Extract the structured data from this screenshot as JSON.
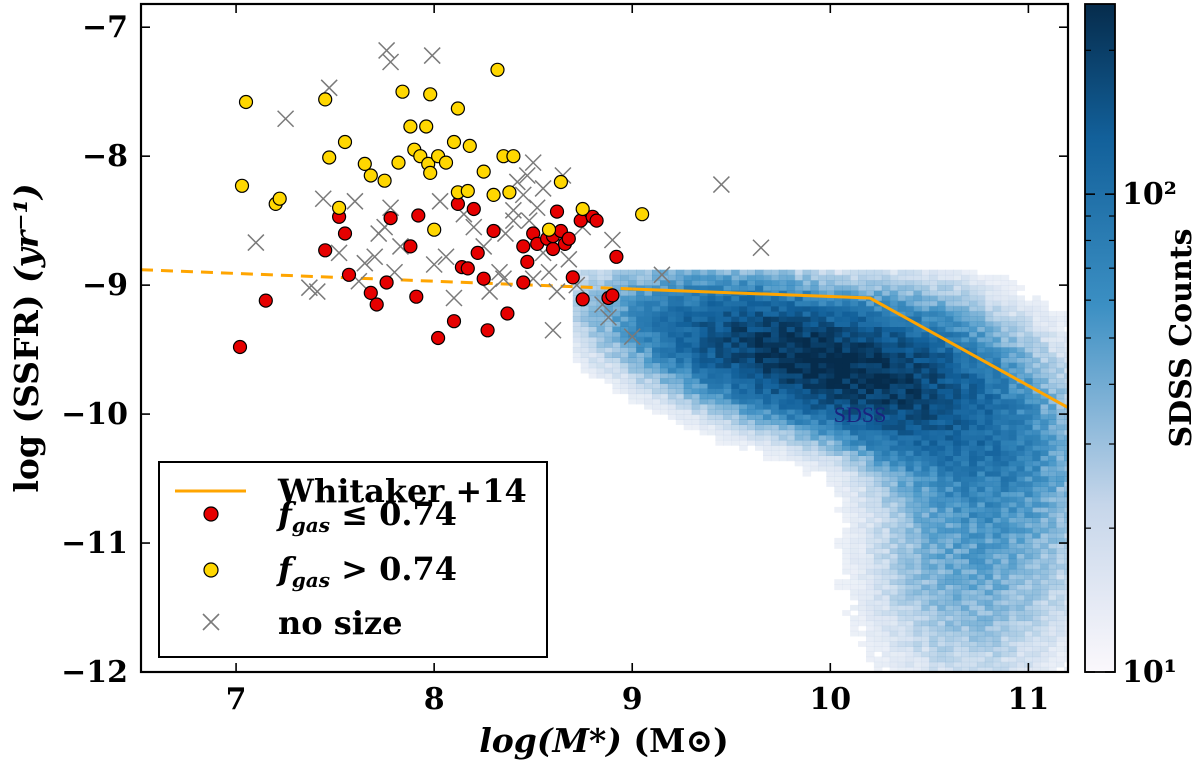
{
  "chart_data": {
    "type": "scatter",
    "xlabel": "log(M*) (M⊙)",
    "xlabel_main": "log(M*)",
    "xlabel_unit": "(M⊙)",
    "ylabel": "log (SSFR) (yr⁻¹)",
    "ylabel_main": "log (SSFR)",
    "ylabel_unit": "(yr⁻¹)",
    "xlim": [
      6.52,
      11.2
    ],
    "ylim": [
      -12,
      -6.82
    ],
    "xticks": [
      7,
      8,
      9,
      10,
      11
    ],
    "xtick_labels": [
      "7",
      "8",
      "9",
      "10",
      "11"
    ],
    "yticks": [
      -12,
      -11,
      -10,
      -9,
      -8,
      -7
    ],
    "ytick_labels": [
      "−12",
      "−11",
      "−10",
      "−9",
      "−8",
      "−7"
    ],
    "legend_position": "lower-left",
    "colorbar": {
      "label": "SDSS Counts",
      "scale": "log",
      "range": [
        10,
        250
      ],
      "tick_labels": [
        "10¹",
        "10²"
      ],
      "tick_values": [
        10,
        100
      ],
      "colors": {
        "low": "#f7f4f9",
        "mid": "#3f8fc4",
        "high": "#08304f"
      }
    },
    "annotation": {
      "text": "SDSS",
      "x": 10.15,
      "y": -10.0
    },
    "series": [
      {
        "name": "Whitaker +14",
        "label": "Whitaker +14",
        "kind": "line",
        "color": "#ffa500",
        "solid": [
          [
            9.0,
            -9.03
          ],
          [
            10.2,
            -9.1
          ],
          [
            11.2,
            -9.95
          ]
        ],
        "dashed": [
          [
            6.52,
            -8.88
          ],
          [
            9.0,
            -9.03
          ]
        ]
      },
      {
        "name": "fgas <= 0.74",
        "label_var": "f",
        "label_sub": "gas",
        "label_rest": " ≤ 0.74",
        "kind": "points",
        "color": "#e60000",
        "points": [
          [
            7.02,
            -9.48
          ],
          [
            7.15,
            -9.12
          ],
          [
            7.45,
            -8.73
          ],
          [
            7.52,
            -8.47
          ],
          [
            7.55,
            -8.6
          ],
          [
            7.57,
            -8.92
          ],
          [
            7.68,
            -9.06
          ],
          [
            7.71,
            -9.15
          ],
          [
            7.76,
            -8.98
          ],
          [
            7.78,
            -8.48
          ],
          [
            7.88,
            -8.7
          ],
          [
            7.91,
            -9.09
          ],
          [
            7.92,
            -8.46
          ],
          [
            8.02,
            -9.41
          ],
          [
            8.1,
            -9.28
          ],
          [
            8.12,
            -8.37
          ],
          [
            8.14,
            -8.86
          ],
          [
            8.17,
            -8.87
          ],
          [
            8.2,
            -8.41
          ],
          [
            8.22,
            -8.75
          ],
          [
            8.25,
            -8.95
          ],
          [
            8.27,
            -9.35
          ],
          [
            8.3,
            -8.58
          ],
          [
            8.37,
            -9.22
          ],
          [
            8.45,
            -8.7
          ],
          [
            8.45,
            -8.98
          ],
          [
            8.47,
            -8.82
          ],
          [
            8.5,
            -8.6
          ],
          [
            8.52,
            -8.68
          ],
          [
            8.57,
            -8.64
          ],
          [
            8.6,
            -8.72
          ],
          [
            8.6,
            -8.62
          ],
          [
            8.62,
            -8.43
          ],
          [
            8.64,
            -8.58
          ],
          [
            8.66,
            -8.68
          ],
          [
            8.68,
            -8.64
          ],
          [
            8.7,
            -8.94
          ],
          [
            8.74,
            -8.5
          ],
          [
            8.75,
            -9.11
          ],
          [
            8.8,
            -8.47
          ],
          [
            8.82,
            -8.5
          ],
          [
            8.88,
            -9.1
          ],
          [
            8.9,
            -9.08
          ],
          [
            8.92,
            -8.78
          ]
        ]
      },
      {
        "name": "fgas > 0.74",
        "label_var": "f",
        "label_sub": "gas",
        "label_rest": " > 0.74",
        "kind": "points",
        "color": "#ffd700",
        "points": [
          [
            7.03,
            -8.23
          ],
          [
            7.05,
            -7.58
          ],
          [
            7.2,
            -8.37
          ],
          [
            7.22,
            -8.33
          ],
          [
            7.45,
            -7.56
          ],
          [
            7.47,
            -8.01
          ],
          [
            7.52,
            -8.4
          ],
          [
            7.55,
            -7.89
          ],
          [
            7.65,
            -8.06
          ],
          [
            7.68,
            -8.15
          ],
          [
            7.75,
            -8.19
          ],
          [
            7.82,
            -8.05
          ],
          [
            7.84,
            -7.5
          ],
          [
            7.88,
            -7.77
          ],
          [
            7.9,
            -7.95
          ],
          [
            7.93,
            -8.0
          ],
          [
            7.96,
            -7.77
          ],
          [
            7.97,
            -8.06
          ],
          [
            7.98,
            -8.13
          ],
          [
            7.98,
            -7.52
          ],
          [
            8.0,
            -8.57
          ],
          [
            8.02,
            -8.0
          ],
          [
            8.06,
            -8.05
          ],
          [
            8.1,
            -7.89
          ],
          [
            8.12,
            -8.28
          ],
          [
            8.12,
            -7.63
          ],
          [
            8.17,
            -8.27
          ],
          [
            8.18,
            -7.92
          ],
          [
            8.25,
            -8.12
          ],
          [
            8.3,
            -8.3
          ],
          [
            8.32,
            -7.33
          ],
          [
            8.35,
            -8.0
          ],
          [
            8.38,
            -8.28
          ],
          [
            8.4,
            -8.0
          ],
          [
            8.58,
            -8.57
          ],
          [
            8.64,
            -8.2
          ],
          [
            8.75,
            -8.41
          ],
          [
            9.05,
            -8.45
          ]
        ]
      },
      {
        "name": "no size",
        "label": "no size",
        "kind": "crosses",
        "color": "#7a7a7a",
        "points": [
          [
            7.1,
            -8.67
          ],
          [
            7.25,
            -7.71
          ],
          [
            7.37,
            -9.02
          ],
          [
            7.41,
            -9.05
          ],
          [
            7.44,
            -8.33
          ],
          [
            7.47,
            -7.47
          ],
          [
            7.52,
            -8.75
          ],
          [
            7.6,
            -8.35
          ],
          [
            7.62,
            -8.97
          ],
          [
            7.65,
            -8.83
          ],
          [
            7.7,
            -8.78
          ],
          [
            7.72,
            -8.6
          ],
          [
            7.75,
            -8.55
          ],
          [
            7.78,
            -8.4
          ],
          [
            7.8,
            -8.9
          ],
          [
            7.83,
            -8.7
          ],
          [
            7.76,
            -7.18
          ],
          [
            7.78,
            -7.27
          ],
          [
            7.99,
            -7.22
          ],
          [
            8.0,
            -8.84
          ],
          [
            8.03,
            -8.35
          ],
          [
            8.06,
            -8.78
          ],
          [
            8.1,
            -9.1
          ],
          [
            8.15,
            -8.45
          ],
          [
            8.2,
            -8.55
          ],
          [
            8.25,
            -8.7
          ],
          [
            8.28,
            -9.05
          ],
          [
            8.33,
            -8.9
          ],
          [
            8.36,
            -8.6
          ],
          [
            8.4,
            -8.42
          ],
          [
            8.42,
            -8.2
          ],
          [
            8.45,
            -8.3
          ],
          [
            8.48,
            -8.5
          ],
          [
            8.5,
            -8.05
          ],
          [
            8.52,
            -8.4
          ],
          [
            8.55,
            -8.75
          ],
          [
            8.58,
            -8.9
          ],
          [
            8.6,
            -9.35
          ],
          [
            8.62,
            -9.05
          ],
          [
            8.65,
            -8.15
          ],
          [
            8.68,
            -8.8
          ],
          [
            8.72,
            -9.0
          ],
          [
            8.75,
            -8.55
          ],
          [
            8.85,
            -9.15
          ],
          [
            8.88,
            -9.25
          ],
          [
            8.9,
            -8.65
          ],
          [
            9.0,
            -9.4
          ],
          [
            9.15,
            -8.92
          ],
          [
            9.45,
            -8.22
          ],
          [
            9.65,
            -8.71
          ],
          [
            8.35,
            -8.95
          ],
          [
            8.47,
            -8.15
          ],
          [
            8.55,
            -8.25
          ],
          [
            8.4,
            -8.5
          ],
          [
            8.5,
            -8.95
          ]
        ]
      }
    ]
  }
}
